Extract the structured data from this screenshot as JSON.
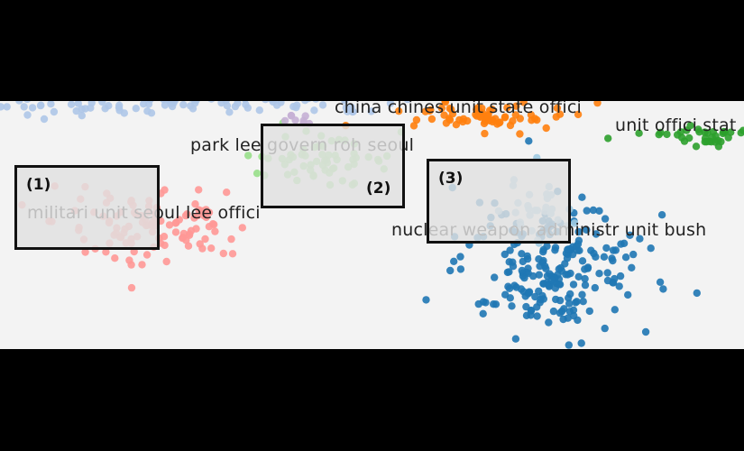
{
  "chart_data": {
    "type": "scatter",
    "title": "",
    "xlabel": "",
    "ylabel": "",
    "grid": false,
    "clusters": [
      {
        "id": "top-cluster",
        "color": "#aec7e8",
        "label": "",
        "center": [
          150,
          0
        ],
        "spread": [
          160,
          8
        ],
        "count": 140
      },
      {
        "id": "china",
        "color": "#ff7f0e",
        "label": "china chines unit state offici",
        "center": [
          540,
          18
        ],
        "spread": [
          45,
          8
        ],
        "count": 70
      },
      {
        "id": "unit-offici",
        "color": "#2ca02c",
        "label": "unit offici stat",
        "center": [
          790,
          40
        ],
        "spread": [
          40,
          6
        ],
        "count": 45
      },
      {
        "id": "park-lee",
        "color": "#98df8a",
        "label": "park lee govern roh seoul",
        "center": [
          355,
          65
        ],
        "spread": [
          40,
          12
        ],
        "count": 60
      },
      {
        "id": "militari",
        "color": "#ff9896",
        "label": "militari unit seoul lee offici",
        "center": [
          170,
          135
        ],
        "spread": [
          55,
          22
        ],
        "count": 110
      },
      {
        "id": "purple",
        "color": "#c5b0d5",
        "label": "",
        "center": [
          325,
          18
        ],
        "spread": [
          12,
          5
        ],
        "count": 8
      },
      {
        "id": "nuclear",
        "color": "#1f77b4",
        "label": "nuclear weapon administr unit bush",
        "center": [
          615,
          185
        ],
        "spread": [
          50,
          35
        ],
        "count": 220
      },
      {
        "id": "nuclear-light",
        "color": "#9ecae1",
        "label": "",
        "center": [
          600,
          120
        ],
        "spread": [
          25,
          20
        ],
        "count": 30
      }
    ]
  },
  "highlights": [
    {
      "tag": "(1)"
    },
    {
      "tag": "(2)"
    },
    {
      "tag": "(3)"
    }
  ]
}
